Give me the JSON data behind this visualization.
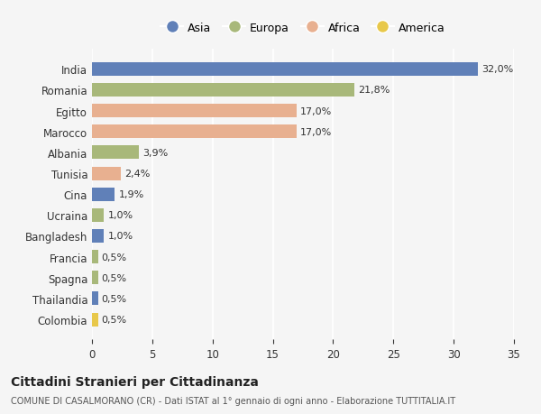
{
  "countries": [
    "India",
    "Romania",
    "Egitto",
    "Marocco",
    "Albania",
    "Tunisia",
    "Cina",
    "Ucraina",
    "Bangladesh",
    "Francia",
    "Spagna",
    "Thailandia",
    "Colombia"
  ],
  "values": [
    32.0,
    21.8,
    17.0,
    17.0,
    3.9,
    2.4,
    1.9,
    1.0,
    1.0,
    0.5,
    0.5,
    0.5,
    0.5
  ],
  "labels": [
    "32,0%",
    "21,8%",
    "17,0%",
    "17,0%",
    "3,9%",
    "2,4%",
    "1,9%",
    "1,0%",
    "1,0%",
    "0,5%",
    "0,5%",
    "0,5%",
    "0,5%"
  ],
  "continents": [
    "Asia",
    "Europa",
    "Africa",
    "Africa",
    "Europa",
    "Africa",
    "Asia",
    "Europa",
    "Asia",
    "Europa",
    "Europa",
    "Asia",
    "America"
  ],
  "continent_colors": {
    "Asia": "#6080b8",
    "Europa": "#a8b87a",
    "Africa": "#e8b090",
    "America": "#e8c84a"
  },
  "legend_order": [
    "Asia",
    "Europa",
    "Africa",
    "America"
  ],
  "background_color": "#f5f5f5",
  "title": "Cittadini Stranieri per Cittadinanza",
  "subtitle": "COMUNE DI CASALMORANO (CR) - Dati ISTAT al 1° gennaio di ogni anno - Elaborazione TUTTITALIA.IT",
  "xlim": [
    0,
    35
  ],
  "xticks": [
    0,
    5,
    10,
    15,
    20,
    25,
    30,
    35
  ],
  "bar_height": 0.65,
  "figsize": [
    6.0,
    4.6
  ],
  "dpi": 100
}
